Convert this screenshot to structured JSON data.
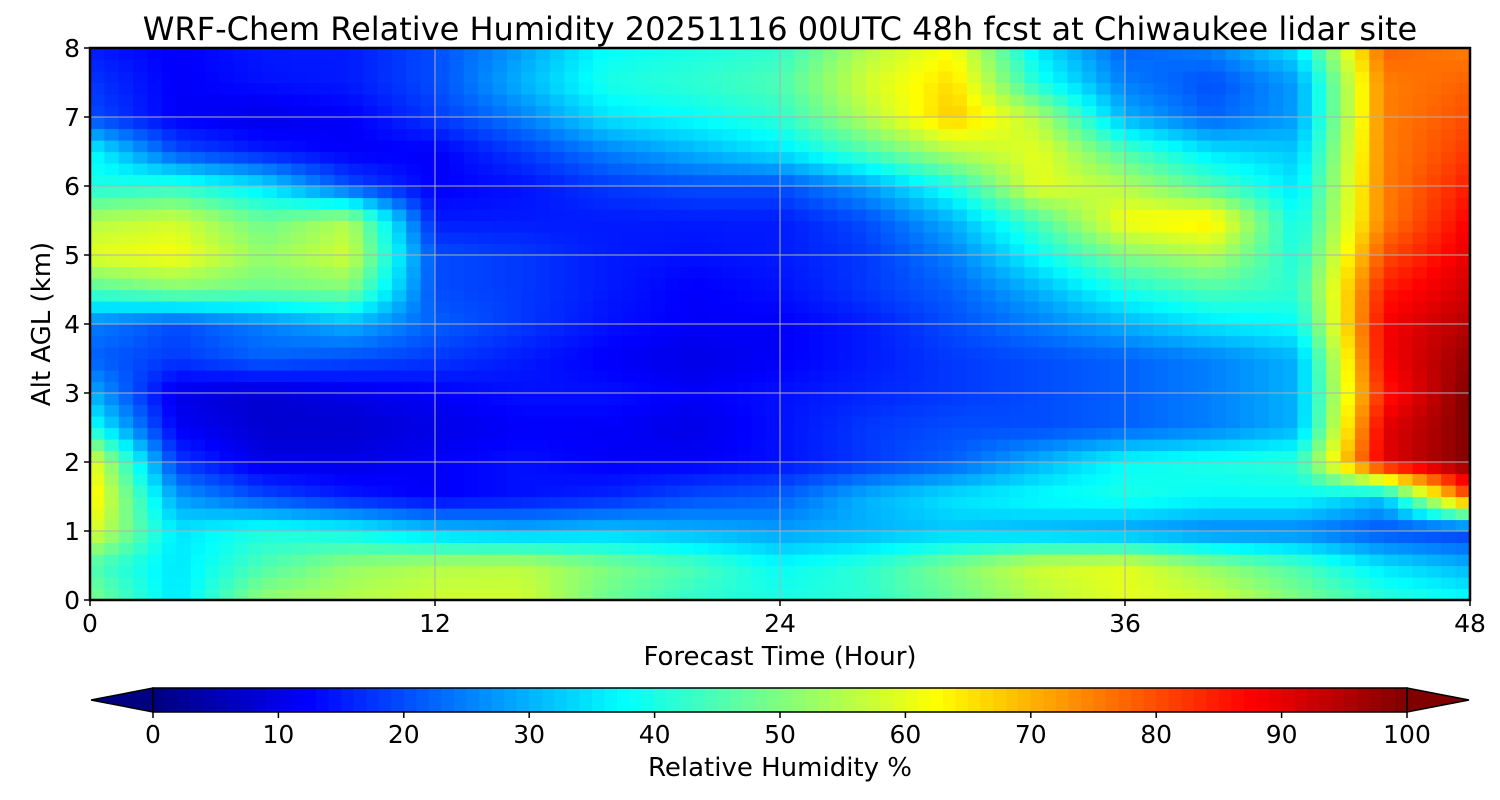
{
  "chart_data": {
    "type": "heatmap",
    "title": "WRF-Chem Relative Humidity 20251116 00UTC 48h fcst at Chiwaukee lidar site",
    "xlabel": "Forecast Time (Hour)",
    "ylabel": "Alt AGL (km)",
    "xlim": [
      0,
      48
    ],
    "ylim": [
      0,
      8
    ],
    "xticks": [
      "0",
      "12",
      "24",
      "36",
      "48"
    ],
    "yticks": [
      "0",
      "1",
      "2",
      "3",
      "4",
      "5",
      "6",
      "7",
      "8"
    ],
    "grid": true,
    "x": [
      0,
      3,
      6,
      9,
      12,
      15,
      18,
      21,
      24,
      27,
      30,
      33,
      36,
      39,
      42,
      45,
      48
    ],
    "y": [
      0,
      0.5,
      1,
      1.5,
      2,
      2.5,
      3,
      3.5,
      4,
      4.5,
      5,
      5.5,
      6,
      6.5,
      7,
      7.5,
      8
    ],
    "z": [
      [
        50,
        35,
        52,
        55,
        58,
        58,
        48,
        42,
        40,
        42,
        48,
        55,
        60,
        58,
        50,
        42,
        38
      ],
      [
        45,
        35,
        45,
        52,
        55,
        56,
        50,
        45,
        38,
        42,
        50,
        58,
        60,
        52,
        45,
        35,
        30
      ],
      [
        60,
        35,
        40,
        38,
        32,
        30,
        32,
        30,
        28,
        30,
        32,
        30,
        28,
        25,
        25,
        20,
        18
      ],
      [
        65,
        28,
        20,
        15,
        12,
        14,
        16,
        20,
        22,
        30,
        35,
        38,
        40,
        38,
        38,
        32,
        80
      ],
      [
        62,
        18,
        10,
        10,
        12,
        14,
        12,
        12,
        14,
        18,
        22,
        30,
        38,
        40,
        42,
        90,
        100
      ],
      [
        40,
        12,
        8,
        8,
        10,
        12,
        12,
        10,
        14,
        18,
        20,
        20,
        22,
        25,
        30,
        90,
        100
      ],
      [
        30,
        10,
        8,
        10,
        12,
        14,
        14,
        12,
        14,
        16,
        18,
        20,
        22,
        25,
        30,
        85,
        100
      ],
      [
        22,
        18,
        22,
        20,
        18,
        15,
        12,
        10,
        12,
        15,
        18,
        20,
        22,
        25,
        30,
        88,
        98
      ],
      [
        25,
        20,
        25,
        30,
        22,
        18,
        14,
        12,
        12,
        15,
        20,
        25,
        30,
        35,
        38,
        88,
        95
      ],
      [
        45,
        50,
        48,
        50,
        20,
        18,
        15,
        12,
        14,
        18,
        22,
        30,
        40,
        45,
        42,
        85,
        92
      ],
      [
        60,
        62,
        52,
        58,
        20,
        18,
        15,
        14,
        15,
        18,
        25,
        38,
        50,
        55,
        40,
        80,
        90
      ],
      [
        55,
        58,
        48,
        55,
        15,
        15,
        15,
        15,
        15,
        20,
        30,
        45,
        62,
        65,
        38,
        75,
        88
      ],
      [
        40,
        42,
        35,
        20,
        12,
        14,
        18,
        20,
        20,
        28,
        40,
        60,
        55,
        45,
        35,
        75,
        85
      ],
      [
        38,
        20,
        15,
        12,
        12,
        18,
        25,
        30,
        35,
        45,
        55,
        60,
        45,
        35,
        32,
        75,
        82
      ],
      [
        20,
        12,
        10,
        12,
        18,
        25,
        35,
        38,
        42,
        55,
        68,
        55,
        30,
        22,
        28,
        75,
        80
      ],
      [
        18,
        12,
        14,
        15,
        20,
        30,
        40,
        42,
        45,
        58,
        66,
        40,
        25,
        20,
        28,
        75,
        78
      ],
      [
        15,
        12,
        15,
        15,
        20,
        28,
        38,
        40,
        42,
        55,
        62,
        35,
        22,
        25,
        35,
        78,
        75
      ]
    ],
    "colorbar": {
      "label": "Relative Humidity %",
      "min": 0,
      "max": 100,
      "ticks": [
        "0",
        "10",
        "20",
        "30",
        "40",
        "50",
        "60",
        "70",
        "80",
        "90",
        "100"
      ],
      "extend": "both",
      "colormap": "jet"
    }
  }
}
